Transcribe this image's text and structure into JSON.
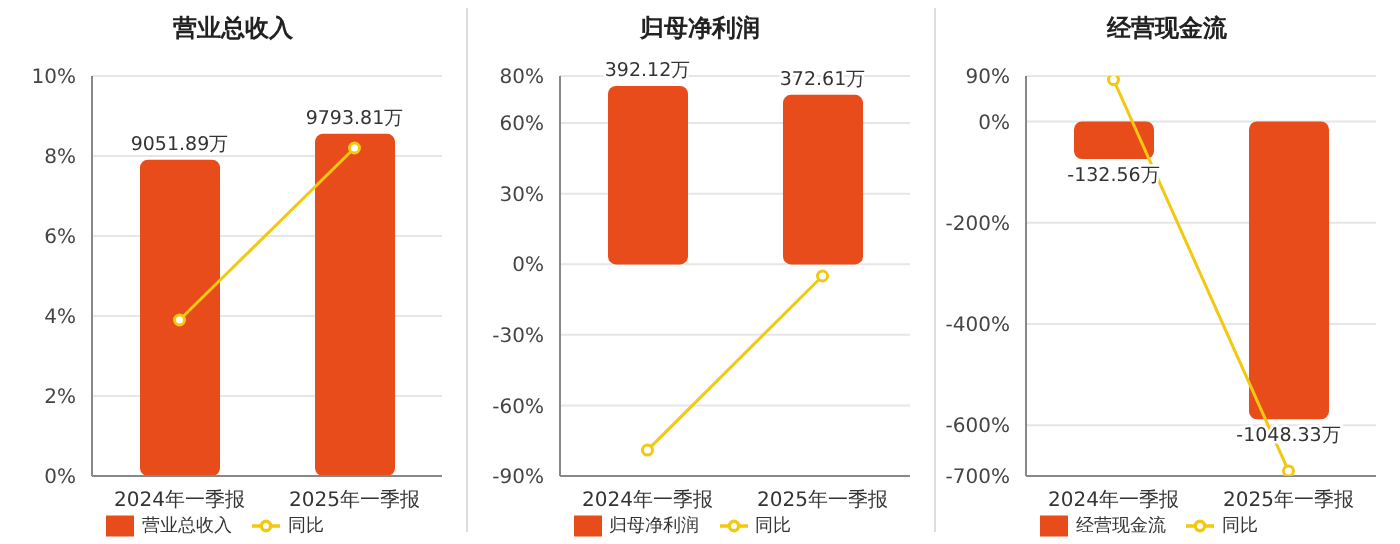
{
  "chart_data": [
    {
      "type": "bar",
      "title": "营业总收入",
      "categories": [
        "2024年一季报",
        "2025年一季报"
      ],
      "series": [
        {
          "name": "营业总收入",
          "axis": "y2",
          "color": "#e84c1a",
          "values": [
            9051.89,
            9793.81
          ],
          "value_labels": [
            "9051.89万",
            "9793.81万"
          ]
        },
        {
          "name": "同比",
          "type": "line",
          "axis": "y",
          "color": "#f2c811",
          "values": [
            3.9,
            8.2
          ]
        }
      ],
      "ylim": [
        0,
        10
      ],
      "yticks": [
        {
          "value": 0,
          "label": "0%"
        },
        {
          "value": 2,
          "label": "2%"
        },
        {
          "value": 4,
          "label": "4%"
        },
        {
          "value": 6,
          "label": "6%"
        },
        {
          "value": 8,
          "label": "8%"
        },
        {
          "value": 10,
          "label": "10%"
        }
      ],
      "y2lim": [
        0,
        11450
      ],
      "tick_labels": [
        "x",
        "y"
      ],
      "grid": "y",
      "legend": "bottom",
      "marker": "circle"
    },
    {
      "type": "bar",
      "title": "归母净利润",
      "categories": [
        "2024年一季报",
        "2025年一季报"
      ],
      "series": [
        {
          "name": "归母净利润",
          "axis": "y2",
          "color": "#e84c1a",
          "values": [
            392.12,
            372.61
          ],
          "value_labels": [
            "392.12万",
            "372.61万"
          ]
        },
        {
          "name": "同比",
          "type": "line",
          "axis": "y",
          "color": "#f2c811",
          "values": [
            -79,
            -5
          ]
        }
      ],
      "ylim": [
        -90,
        80
      ],
      "yticks": [
        {
          "value": -90,
          "label": "-90%"
        },
        {
          "value": -60,
          "label": "-60%"
        },
        {
          "value": -30,
          "label": "-30%"
        },
        {
          "value": 0,
          "label": "0%"
        },
        {
          "value": 30,
          "label": "30%"
        },
        {
          "value": 60,
          "label": "60%"
        },
        {
          "value": 80,
          "label": "80%"
        }
      ],
      "y2lim": [
        -465,
        414
      ],
      "tick_labels": [
        "x",
        "y"
      ],
      "grid": "y",
      "legend": "bottom",
      "marker": "circle"
    },
    {
      "type": "bar",
      "title": "经营现金流",
      "categories": [
        "2024年一季报",
        "2025年一季报"
      ],
      "series": [
        {
          "name": "经营现金流",
          "axis": "y2",
          "color": "#e84c1a",
          "values": [
            -132.56,
            -1048.33
          ],
          "value_labels": [
            "-132.56万",
            "-1048.33万"
          ]
        },
        {
          "name": "同比",
          "type": "line",
          "axis": "y",
          "color": "#f2c811",
          "values": [
            83,
            -690
          ]
        }
      ],
      "ylim": [
        -700,
        90
      ],
      "yticks": [
        {
          "value": -700,
          "label": "-700%"
        },
        {
          "value": -600,
          "label": "-600%"
        },
        {
          "value": -400,
          "label": "-400%"
        },
        {
          "value": -200,
          "label": "-200%"
        },
        {
          "value": 0,
          "label": "0%"
        },
        {
          "value": 90,
          "label": "90%"
        }
      ],
      "y2lim": [
        -1248,
        160
      ],
      "tick_labels": [
        "x",
        "y"
      ],
      "grid": "y",
      "legend": "bottom",
      "marker": "circle"
    }
  ]
}
